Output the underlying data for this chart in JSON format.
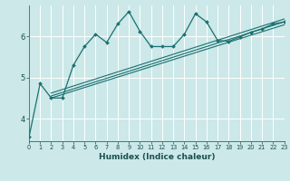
{
  "title": "",
  "xlabel": "Humidex (Indice chaleur)",
  "bg_color": "#cce8e8",
  "line_color": "#1a7070",
  "grid_color": "#ffffff",
  "x_data": [
    0,
    1,
    2,
    3,
    4,
    5,
    6,
    7,
    8,
    9,
    10,
    11,
    12,
    13,
    14,
    15,
    16,
    17,
    18,
    19,
    20,
    21,
    22,
    23
  ],
  "main_line": [
    3.55,
    4.85,
    4.5,
    4.5,
    5.3,
    5.75,
    6.05,
    5.85,
    6.3,
    6.6,
    6.12,
    5.75,
    5.75,
    5.75,
    6.05,
    6.55,
    6.35,
    5.9,
    5.88,
    5.98,
    6.1,
    6.18,
    6.3,
    6.35
  ],
  "trend1_x": [
    2,
    23
  ],
  "trend1_y": [
    4.5,
    6.28
  ],
  "trend2_x": [
    2,
    23
  ],
  "trend2_y": [
    4.55,
    6.35
  ],
  "trend3_x": [
    2,
    23
  ],
  "trend3_y": [
    4.62,
    6.42
  ],
  "ylim": [
    3.45,
    6.75
  ],
  "yticks": [
    4,
    5,
    6
  ],
  "xlim": [
    0,
    23
  ],
  "xticks": [
    0,
    1,
    2,
    3,
    4,
    5,
    6,
    7,
    8,
    9,
    10,
    11,
    12,
    13,
    14,
    15,
    16,
    17,
    18,
    19,
    20,
    21,
    22,
    23
  ]
}
